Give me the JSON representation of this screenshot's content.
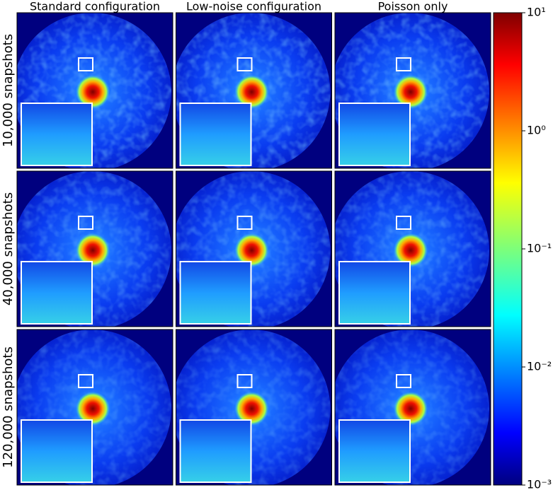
{
  "chart_data": {
    "type": "image-grid",
    "columns": [
      "Standard configuration",
      "Low-noise configuration",
      "Poisson only"
    ],
    "rows": [
      "10,000 snapshots",
      "40,000 snapshots",
      "120,000 snapshots"
    ],
    "log_scale": true,
    "ylim": [
      0.001,
      10
    ],
    "yticks": [
      {
        "value": 0.001,
        "label": "10⁻³"
      },
      {
        "value": 0.01,
        "label": "10⁻²"
      },
      {
        "value": 0.1,
        "label": "10⁻¹"
      },
      {
        "value": 1,
        "label": "10⁰"
      },
      {
        "value": 10,
        "label": "10¹"
      }
    ]
  }
}
